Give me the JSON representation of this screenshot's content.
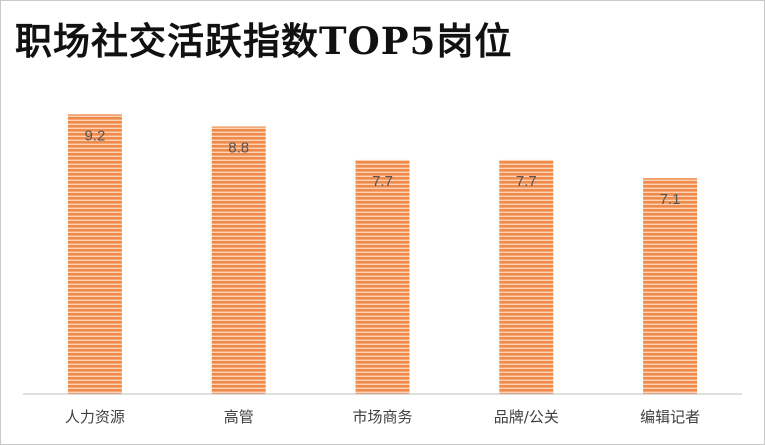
{
  "colors": {
    "bar": "#f08a4b",
    "bar_stripe": "#fbd3b8",
    "axis": "#bfbfbf",
    "label": "#404040",
    "value_label": "#555555"
  },
  "chart_data": {
    "type": "bar",
    "title": "职场社交活跃指数TOP5岗位",
    "categories": [
      "人力资源",
      "高管",
      "市场商务",
      "品牌/公关",
      "编辑记者"
    ],
    "values": [
      9.2,
      8.8,
      7.7,
      7.7,
      7.1
    ],
    "value_labels": [
      "9.2",
      "8.8",
      "7.7",
      "7.7",
      "7.1"
    ],
    "xlabel": "",
    "ylabel": "",
    "ylim": [
      0,
      10
    ],
    "grid": false,
    "legend": "none"
  }
}
